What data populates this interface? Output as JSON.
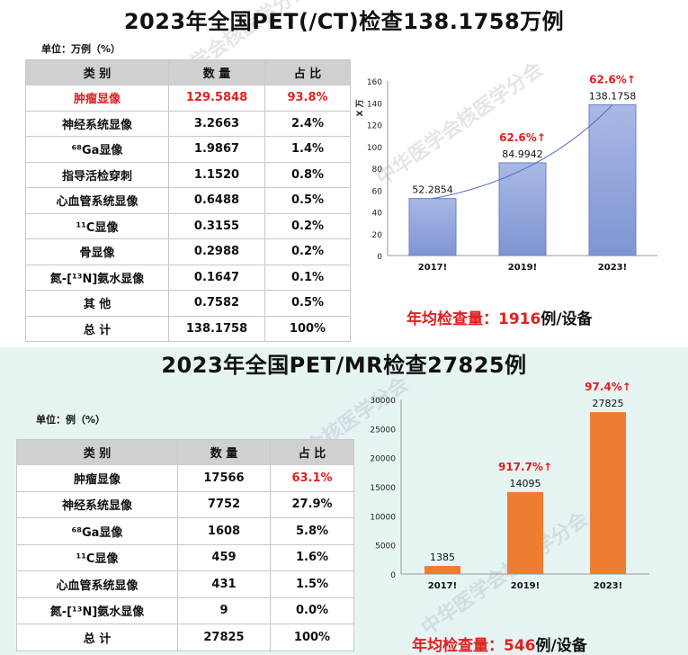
{
  "pet_ct": {
    "title": "2023年全国PET(/CT)检查138.1758万例",
    "unit": "单位：万例（%）",
    "headers": [
      "类 别",
      "数 量",
      "占 比"
    ],
    "rows": [
      {
        "category": "肿瘤显像",
        "count": "129.5848",
        "pct": "93.8%",
        "highlight": true
      },
      {
        "category": "神经系统显像",
        "count": "3.2663",
        "pct": "2.4%"
      },
      {
        "category": "⁶⁸Ga显像",
        "count": "1.9867",
        "pct": "1.4%"
      },
      {
        "category": "指导活检穿刺",
        "count": "1.1520",
        "pct": "0.8%"
      },
      {
        "category": "心血管系统显像",
        "count": "0.6488",
        "pct": "0.5%"
      },
      {
        "category": "¹¹C显像",
        "count": "0.3155",
        "pct": "0.2%"
      },
      {
        "category": "骨显像",
        "count": "0.2988",
        "pct": "0.2%"
      },
      {
        "category": "氮-[¹³N]氨水显像",
        "count": "0.1647",
        "pct": "0.1%"
      },
      {
        "category": "其 他",
        "count": "0.7582",
        "pct": "0.5%"
      },
      {
        "category": "总 计",
        "count": "138.1758",
        "pct": "100%"
      }
    ],
    "summary_prefix": "年均检查量：",
    "summary_value": "1916",
    "summary_suffix": "例/设备"
  },
  "pet_mr": {
    "title": "2023年全国PET/MR检查27825例",
    "unit": "单位：例（%）",
    "headers": [
      "类 别",
      "数 量",
      "占 比"
    ],
    "rows": [
      {
        "category": "肿瘤显像",
        "count": "17566",
        "pct": "63.1%",
        "pct_red": true
      },
      {
        "category": "神经系统显像",
        "count": "7752",
        "pct": "27.9%"
      },
      {
        "category": "⁶⁸Ga显像",
        "count": "1608",
        "pct": "5.8%"
      },
      {
        "category": "¹¹C显像",
        "count": "459",
        "pct": "1.6%"
      },
      {
        "category": "心血管系统显像",
        "count": "431",
        "pct": "1.5%"
      },
      {
        "category": "氮-[¹³N]氨水显像",
        "count": "9",
        "pct": "0.0%"
      },
      {
        "category": "总 计",
        "count": "27825",
        "pct": "100%"
      }
    ],
    "summary_prefix": "年均检查量：",
    "summary_value": "546",
    "summary_suffix": "例/设备"
  },
  "watermark": "中华医学会核医学分会",
  "colors": {
    "red": "#e02020",
    "blue_bar": "#8fa3d8",
    "orange_bar": "#ee7d31",
    "bottom_bg": "#e6f4f4"
  },
  "chart_data": [
    {
      "type": "bar",
      "categories": [
        "2017!",
        "2019!",
        "2023!"
      ],
      "values": [
        52.2854,
        84.9942,
        138.1758
      ],
      "value_labels": [
        "52.2854",
        "84.9942",
        "138.1758"
      ],
      "growth_labels": [
        "",
        "62.6%↑",
        "62.6%↑"
      ],
      "ylabel": "X 万",
      "ylim": [
        0,
        160
      ],
      "yticks": [
        0,
        20,
        40,
        60,
        80,
        100,
        120,
        140,
        160
      ],
      "trendline": true,
      "color": "#8fa3d8"
    },
    {
      "type": "bar",
      "categories": [
        "2017!",
        "2019!",
        "2023!"
      ],
      "values": [
        1385,
        14095,
        27825
      ],
      "value_labels": [
        "1385",
        "14095",
        "27825"
      ],
      "growth_labels": [
        "",
        "917.7%↑",
        "97.4%↑"
      ],
      "ylim": [
        0,
        30000
      ],
      "yticks": [
        0,
        5000,
        10000,
        15000,
        20000,
        25000,
        30000
      ],
      "trendline": false,
      "color": "#ee7d31"
    }
  ]
}
